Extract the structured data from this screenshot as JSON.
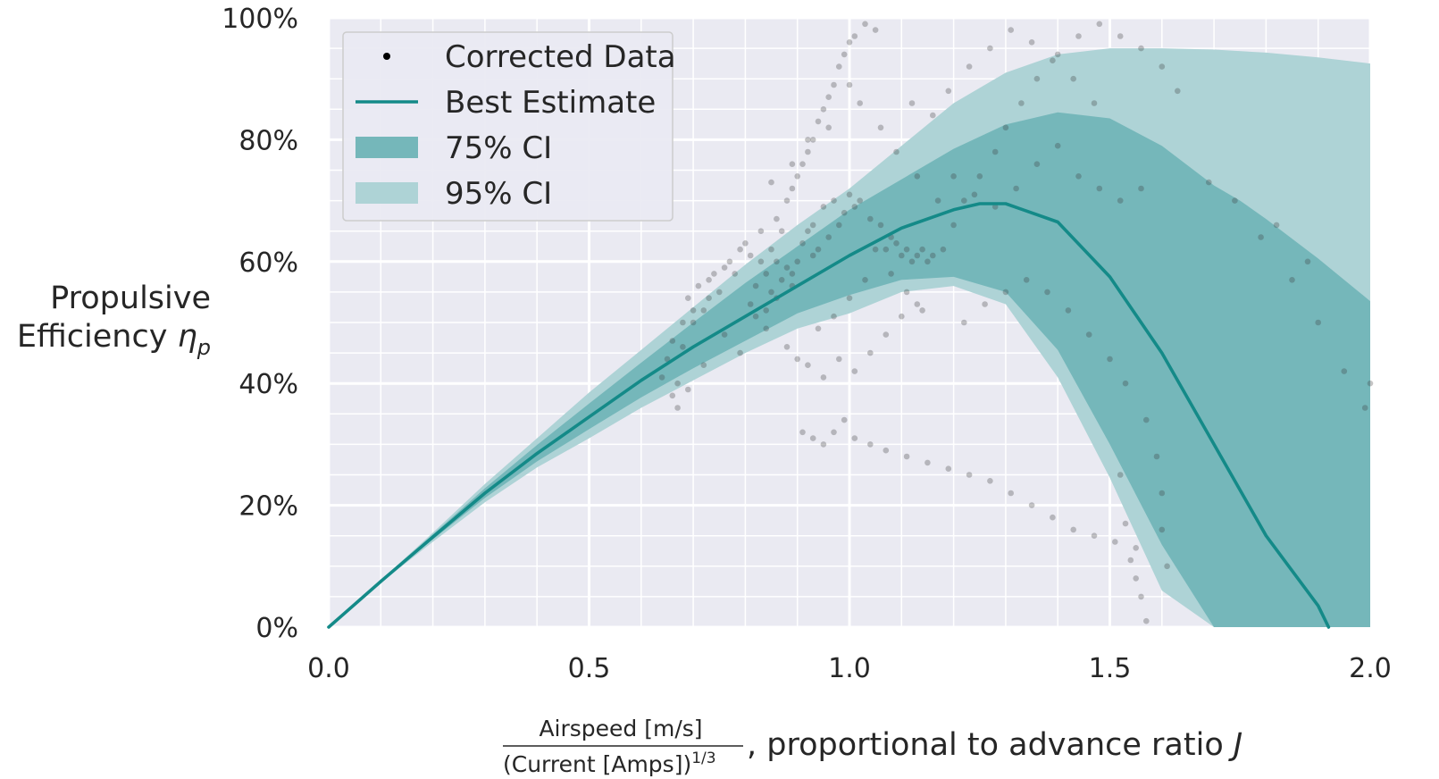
{
  "chart_data": {
    "type": "line",
    "xlabel": {
      "numerator": "Airspeed [m/s]",
      "denominator": "(Current [Amps])",
      "denominator_exponent": "1/3",
      "suffix": ", proportional to advance ratio ",
      "symbol": "J"
    },
    "ylabel": {
      "line1": "Propulsive",
      "line2": "Efficiency ",
      "symbol": "η",
      "subscript": "p"
    },
    "xlim": [
      0,
      2.0
    ],
    "ylim": [
      0,
      1.0
    ],
    "x_ticks": [
      {
        "value": 0.0,
        "label": "0.0"
      },
      {
        "value": 0.5,
        "label": "0.5"
      },
      {
        "value": 1.0,
        "label": "1.0"
      },
      {
        "value": 1.5,
        "label": "1.5"
      },
      {
        "value": 2.0,
        "label": "2.0"
      }
    ],
    "y_ticks": [
      {
        "value": 0.0,
        "label": "0%"
      },
      {
        "value": 0.2,
        "label": "20%"
      },
      {
        "value": 0.4,
        "label": "40%"
      },
      {
        "value": 0.6,
        "label": "60%"
      },
      {
        "value": 0.8,
        "label": "80%"
      },
      {
        "value": 1.0,
        "label": "100%"
      }
    ],
    "grid": true,
    "minor_grid": true,
    "legend": {
      "placement": "top-left",
      "entries": [
        {
          "label": "Corrected Data",
          "kind": "dot"
        },
        {
          "label": "Best Estimate",
          "kind": "line"
        },
        {
          "label": "75% CI",
          "kind": "band75"
        },
        {
          "label": "95% CI",
          "kind": "band95"
        }
      ]
    },
    "colors": {
      "background": "#eaeaf2",
      "grid": "#ffffff",
      "best": "#148a88",
      "ci75": "#75b7ba",
      "ci95": "#aed3d6",
      "dots": "#3c3c3c"
    },
    "best_estimate": {
      "name": "Best Estimate",
      "x": [
        0,
        0.1,
        0.2,
        0.3,
        0.4,
        0.5,
        0.6,
        0.7,
        0.8,
        0.9,
        1.0,
        1.1,
        1.2,
        1.25,
        1.3,
        1.4,
        1.5,
        1.6,
        1.7,
        1.8,
        1.9,
        1.92
      ],
      "y": [
        0.0,
        0.075,
        0.148,
        0.22,
        0.285,
        0.345,
        0.405,
        0.46,
        0.51,
        0.56,
        0.61,
        0.655,
        0.685,
        0.695,
        0.695,
        0.665,
        0.575,
        0.45,
        0.3,
        0.15,
        0.035,
        0.0
      ]
    },
    "ci75": {
      "name": "75% CI",
      "x": [
        0,
        0.1,
        0.2,
        0.3,
        0.4,
        0.5,
        0.6,
        0.7,
        0.8,
        0.9,
        1.0,
        1.1,
        1.2,
        1.3,
        1.4,
        1.5,
        1.6,
        1.7,
        1.75,
        1.8,
        1.9,
        2.0
      ],
      "upper": [
        0.0,
        0.076,
        0.152,
        0.228,
        0.299,
        0.367,
        0.434,
        0.5,
        0.565,
        0.625,
        0.685,
        0.735,
        0.785,
        0.825,
        0.845,
        0.835,
        0.79,
        0.725,
        0.7,
        0.67,
        0.605,
        0.535
      ],
      "lower": [
        0.0,
        0.074,
        0.144,
        0.212,
        0.272,
        0.325,
        0.377,
        0.425,
        0.47,
        0.515,
        0.545,
        0.57,
        0.575,
        0.55,
        0.455,
        0.3,
        0.135,
        0.0,
        0.0,
        0.0,
        0.0,
        0.0
      ]
    },
    "ci95": {
      "name": "95% CI",
      "x": [
        0,
        0.1,
        0.2,
        0.3,
        0.4,
        0.5,
        0.6,
        0.7,
        0.8,
        0.9,
        1.0,
        1.1,
        1.2,
        1.3,
        1.4,
        1.5,
        1.6,
        1.7,
        1.8,
        1.9,
        2.0
      ],
      "upper": [
        0.0,
        0.077,
        0.155,
        0.235,
        0.31,
        0.385,
        0.455,
        0.525,
        0.595,
        0.66,
        0.72,
        0.79,
        0.86,
        0.91,
        0.94,
        0.95,
        0.95,
        0.948,
        0.943,
        0.935,
        0.925
      ],
      "lower": [
        0.0,
        0.073,
        0.14,
        0.205,
        0.262,
        0.31,
        0.36,
        0.405,
        0.45,
        0.49,
        0.515,
        0.55,
        0.56,
        0.53,
        0.41,
        0.245,
        0.06,
        0.0,
        0.0,
        0.0,
        0.0
      ]
    },
    "corrected_data": {
      "name": "Corrected Data",
      "points": [
        [
          0.64,
          0.41
        ],
        [
          0.65,
          0.44
        ],
        [
          0.66,
          0.47
        ],
        [
          0.66,
          0.38
        ],
        [
          0.67,
          0.36
        ],
        [
          0.67,
          0.4
        ],
        [
          0.68,
          0.5
        ],
        [
          0.69,
          0.54
        ],
        [
          0.69,
          0.39
        ],
        [
          0.7,
          0.52
        ],
        [
          0.71,
          0.56
        ],
        [
          0.72,
          0.43
        ],
        [
          0.73,
          0.57
        ],
        [
          0.74,
          0.58
        ],
        [
          0.75,
          0.55
        ],
        [
          0.76,
          0.59
        ],
        [
          0.77,
          0.6
        ],
        [
          0.78,
          0.58
        ],
        [
          0.79,
          0.62
        ],
        [
          0.8,
          0.63
        ],
        [
          0.81,
          0.61
        ],
        [
          0.82,
          0.56
        ],
        [
          0.83,
          0.6
        ],
        [
          0.83,
          0.65
        ],
        [
          0.84,
          0.58
        ],
        [
          0.84,
          0.52
        ],
        [
          0.85,
          0.55
        ],
        [
          0.85,
          0.62
        ],
        [
          0.86,
          0.6
        ],
        [
          0.86,
          0.67
        ],
        [
          0.87,
          0.57
        ],
        [
          0.87,
          0.65
        ],
        [
          0.88,
          0.59
        ],
        [
          0.88,
          0.7
        ],
        [
          0.89,
          0.56
        ],
        [
          0.89,
          0.72
        ],
        [
          0.9,
          0.6
        ],
        [
          0.9,
          0.74
        ],
        [
          0.91,
          0.63
        ],
        [
          0.91,
          0.76
        ],
        [
          0.92,
          0.65
        ],
        [
          0.92,
          0.78
        ],
        [
          0.93,
          0.66
        ],
        [
          0.93,
          0.8
        ],
        [
          0.94,
          0.62
        ],
        [
          0.94,
          0.83
        ],
        [
          0.95,
          0.69
        ],
        [
          0.95,
          0.85
        ],
        [
          0.96,
          0.64
        ],
        [
          0.96,
          0.87
        ],
        [
          0.97,
          0.7
        ],
        [
          0.97,
          0.89
        ],
        [
          0.98,
          0.66
        ],
        [
          0.98,
          0.92
        ],
        [
          0.99,
          0.68
        ],
        [
          0.99,
          0.94
        ],
        [
          1.0,
          0.71
        ],
        [
          1.0,
          0.96
        ],
        [
          1.01,
          0.69
        ],
        [
          1.01,
          0.97
        ],
        [
          1.02,
          0.7
        ],
        [
          1.03,
          0.99
        ],
        [
          1.04,
          0.67
        ],
        [
          1.05,
          0.98
        ],
        [
          1.06,
          0.66
        ],
        [
          1.07,
          0.62
        ],
        [
          1.08,
          0.64
        ],
        [
          1.09,
          0.63
        ],
        [
          1.1,
          0.61
        ],
        [
          1.11,
          0.62
        ],
        [
          1.12,
          0.6
        ],
        [
          1.13,
          0.61
        ],
        [
          1.14,
          0.62
        ],
        [
          1.15,
          0.6
        ],
        [
          1.16,
          0.61
        ],
        [
          1.18,
          0.62
        ],
        [
          1.2,
          0.66
        ],
        [
          1.22,
          0.7
        ],
        [
          1.25,
          0.74
        ],
        [
          1.28,
          0.78
        ],
        [
          1.3,
          0.82
        ],
        [
          1.33,
          0.86
        ],
        [
          1.36,
          0.9
        ],
        [
          1.4,
          0.94
        ],
        [
          1.44,
          0.97
        ],
        [
          1.48,
          0.99
        ],
        [
          1.52,
          0.97
        ],
        [
          1.56,
          0.95
        ],
        [
          1.6,
          0.92
        ],
        [
          1.63,
          0.88
        ],
        [
          0.88,
          0.46
        ],
        [
          0.9,
          0.44
        ],
        [
          0.92,
          0.43
        ],
        [
          0.95,
          0.41
        ],
        [
          0.98,
          0.44
        ],
        [
          1.01,
          0.42
        ],
        [
          1.04,
          0.45
        ],
        [
          1.07,
          0.48
        ],
        [
          1.1,
          0.51
        ],
        [
          1.13,
          0.53
        ],
        [
          0.91,
          0.32
        ],
        [
          0.93,
          0.31
        ],
        [
          0.95,
          0.3
        ],
        [
          0.97,
          0.32
        ],
        [
          0.99,
          0.34
        ],
        [
          1.01,
          0.31
        ],
        [
          1.04,
          0.3
        ],
        [
          1.07,
          0.29
        ],
        [
          1.11,
          0.28
        ],
        [
          1.15,
          0.27
        ],
        [
          1.19,
          0.26
        ],
        [
          1.23,
          0.25
        ],
        [
          1.27,
          0.24
        ],
        [
          1.31,
          0.22
        ],
        [
          1.35,
          0.2
        ],
        [
          1.39,
          0.18
        ],
        [
          1.43,
          0.16
        ],
        [
          1.47,
          0.15
        ],
        [
          1.51,
          0.14
        ],
        [
          1.55,
          0.13
        ],
        [
          1.22,
          0.5
        ],
        [
          1.26,
          0.53
        ],
        [
          1.3,
          0.55
        ],
        [
          1.34,
          0.57
        ],
        [
          1.38,
          0.55
        ],
        [
          1.42,
          0.52
        ],
        [
          1.46,
          0.48
        ],
        [
          1.5,
          0.44
        ],
        [
          1.53,
          0.4
        ],
        [
          1.57,
          0.34
        ],
        [
          1.59,
          0.28
        ],
        [
          1.6,
          0.22
        ],
        [
          1.6,
          0.16
        ],
        [
          1.61,
          0.1
        ],
        [
          1.56,
          0.05
        ],
        [
          1.57,
          0.01
        ],
        [
          1.55,
          0.08
        ],
        [
          1.54,
          0.11
        ],
        [
          1.53,
          0.17
        ],
        [
          1.52,
          0.25
        ],
        [
          1.2,
          0.74
        ],
        [
          1.24,
          0.71
        ],
        [
          1.28,
          0.69
        ],
        [
          1.32,
          0.72
        ],
        [
          1.36,
          0.76
        ],
        [
          1.4,
          0.79
        ],
        [
          1.44,
          0.74
        ],
        [
          1.48,
          0.72
        ],
        [
          1.52,
          0.7
        ],
        [
          1.56,
          0.72
        ],
        [
          1.12,
          0.86
        ],
        [
          1.16,
          0.84
        ],
        [
          1.19,
          0.88
        ],
        [
          1.23,
          0.92
        ],
        [
          1.27,
          0.95
        ],
        [
          1.31,
          0.98
        ],
        [
          1.35,
          0.96
        ],
        [
          1.39,
          0.93
        ],
        [
          1.43,
          0.9
        ],
        [
          1.47,
          0.86
        ],
        [
          1.69,
          0.73
        ],
        [
          1.74,
          0.7
        ],
        [
          1.79,
          0.64
        ],
        [
          1.85,
          0.57
        ],
        [
          1.9,
          0.5
        ],
        [
          1.95,
          0.42
        ],
        [
          1.99,
          0.36
        ],
        [
          2.0,
          0.4
        ],
        [
          1.88,
          0.6
        ],
        [
          1.82,
          0.66
        ],
        [
          1.05,
          0.62
        ],
        [
          1.08,
          0.58
        ],
        [
          1.11,
          0.55
        ],
        [
          1.14,
          0.52
        ],
        [
          1.03,
          0.57
        ],
        [
          1.0,
          0.54
        ],
        [
          0.97,
          0.51
        ],
        [
          0.94,
          0.49
        ],
        [
          0.84,
          0.49
        ],
        [
          0.81,
          0.53
        ],
        [
          0.73,
          0.54
        ],
        [
          0.7,
          0.5
        ],
        [
          0.68,
          0.46
        ],
        [
          0.72,
          0.52
        ],
        [
          0.76,
          0.48
        ],
        [
          0.79,
          0.45
        ],
        [
          0.82,
          0.51
        ],
        [
          0.86,
          0.54
        ],
        [
          0.89,
          0.58
        ],
        [
          0.93,
          0.61
        ],
        [
          1.17,
          0.7
        ],
        [
          1.13,
          0.74
        ],
        [
          1.09,
          0.78
        ],
        [
          1.06,
          0.82
        ],
        [
          1.02,
          0.86
        ],
        [
          1.0,
          0.89
        ],
        [
          0.96,
          0.82
        ],
        [
          0.92,
          0.8
        ],
        [
          0.89,
          0.76
        ],
        [
          0.85,
          0.73
        ]
      ]
    }
  }
}
